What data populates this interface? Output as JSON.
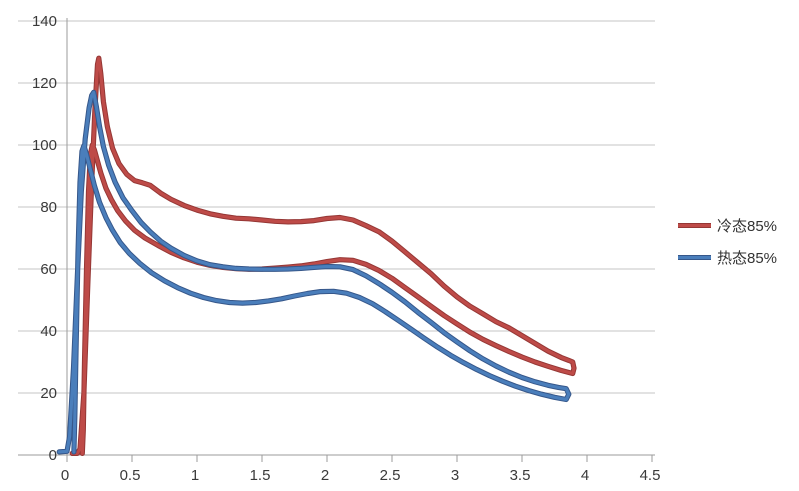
{
  "chart_data": {
    "type": "line",
    "title": "",
    "xlabel": "",
    "ylabel": "",
    "xlim": [
      0,
      4.5
    ],
    "ylim": [
      0,
      140
    ],
    "x_ticks": [
      "0",
      "0.5",
      "1",
      "1.5",
      "2",
      "2.5",
      "3",
      "3.5",
      "4",
      "4.5"
    ],
    "y_ticks": [
      "0",
      "20",
      "40",
      "60",
      "80",
      "100",
      "120",
      "140"
    ],
    "grid": "horizontal-major",
    "legend_position": "right",
    "series": [
      {
        "name": "冷态85%",
        "color": "#BE4B48",
        "border_color": "#953735",
        "points": [
          [
            0.04,
            0.5
          ],
          [
            0.08,
            0.5
          ],
          [
            0.1,
            2
          ],
          [
            0.13,
            20
          ],
          [
            0.16,
            55
          ],
          [
            0.19,
            88
          ],
          [
            0.215,
            112
          ],
          [
            0.235,
            126
          ],
          [
            0.245,
            128
          ],
          [
            0.26,
            123
          ],
          [
            0.28,
            114
          ],
          [
            0.31,
            106
          ],
          [
            0.35,
            99
          ],
          [
            0.4,
            94
          ],
          [
            0.46,
            90.5
          ],
          [
            0.52,
            88.5
          ],
          [
            0.58,
            87.8
          ],
          [
            0.64,
            87
          ],
          [
            0.72,
            84.5
          ],
          [
            0.8,
            82.5
          ],
          [
            0.9,
            80.5
          ],
          [
            1.0,
            79
          ],
          [
            1.1,
            77.8
          ],
          [
            1.2,
            77
          ],
          [
            1.3,
            76.4
          ],
          [
            1.4,
            76.2
          ],
          [
            1.5,
            75.8
          ],
          [
            1.6,
            75.4
          ],
          [
            1.7,
            75.2
          ],
          [
            1.8,
            75.3
          ],
          [
            1.9,
            75.6
          ],
          [
            2.0,
            76.3
          ],
          [
            2.1,
            76.6
          ],
          [
            2.2,
            75.8
          ],
          [
            2.3,
            74
          ],
          [
            2.4,
            72
          ],
          [
            2.5,
            69
          ],
          [
            2.6,
            65.5
          ],
          [
            2.7,
            62
          ],
          [
            2.8,
            58.5
          ],
          [
            2.9,
            54.5
          ],
          [
            3.0,
            51
          ],
          [
            3.1,
            48
          ],
          [
            3.2,
            45.5
          ],
          [
            3.3,
            43
          ],
          [
            3.4,
            41
          ],
          [
            3.5,
            38.5
          ],
          [
            3.6,
            36
          ],
          [
            3.7,
            33.5
          ],
          [
            3.8,
            31.5
          ],
          [
            3.86,
            30.5
          ],
          [
            3.89,
            30
          ],
          [
            3.9,
            28
          ],
          [
            3.89,
            26.3
          ],
          [
            3.8,
            27.3
          ],
          [
            3.7,
            28.6
          ],
          [
            3.6,
            30
          ],
          [
            3.5,
            31.6
          ],
          [
            3.4,
            33.4
          ],
          [
            3.3,
            35.3
          ],
          [
            3.2,
            37.3
          ],
          [
            3.1,
            39.6
          ],
          [
            3.0,
            42.3
          ],
          [
            2.9,
            45
          ],
          [
            2.8,
            48
          ],
          [
            2.7,
            51
          ],
          [
            2.6,
            54
          ],
          [
            2.5,
            57
          ],
          [
            2.4,
            59.5
          ],
          [
            2.3,
            61.5
          ],
          [
            2.2,
            62.8
          ],
          [
            2.1,
            63
          ],
          [
            2.0,
            62.4
          ],
          [
            1.9,
            61.6
          ],
          [
            1.8,
            61
          ],
          [
            1.7,
            60.6
          ],
          [
            1.6,
            60.3
          ],
          [
            1.5,
            60
          ],
          [
            1.4,
            59.9
          ],
          [
            1.3,
            60.1
          ],
          [
            1.2,
            60.5
          ],
          [
            1.1,
            61.2
          ],
          [
            1.0,
            62.2
          ],
          [
            0.9,
            63.6
          ],
          [
            0.8,
            65.4
          ],
          [
            0.7,
            67.6
          ],
          [
            0.6,
            70
          ],
          [
            0.52,
            72.5
          ],
          [
            0.45,
            75.5
          ],
          [
            0.39,
            78.8
          ],
          [
            0.34,
            82.5
          ],
          [
            0.3,
            86
          ],
          [
            0.26,
            91
          ],
          [
            0.23,
            95.5
          ],
          [
            0.21,
            98.5
          ],
          [
            0.195,
            100
          ],
          [
            0.18,
            97
          ],
          [
            0.165,
            85
          ],
          [
            0.15,
            60
          ],
          [
            0.135,
            30
          ],
          [
            0.125,
            8
          ],
          [
            0.118,
            0.5
          ]
        ]
      },
      {
        "name": "热态85%",
        "color": "#4A7EBB",
        "border_color": "#36578A",
        "points": [
          [
            -0.06,
            1
          ],
          [
            0.0,
            1.2
          ],
          [
            0.02,
            6
          ],
          [
            0.05,
            28
          ],
          [
            0.08,
            58
          ],
          [
            0.11,
            85
          ],
          [
            0.14,
            102
          ],
          [
            0.17,
            112
          ],
          [
            0.19,
            116
          ],
          [
            0.205,
            117
          ],
          [
            0.225,
            112.5
          ],
          [
            0.25,
            106
          ],
          [
            0.28,
            99.5
          ],
          [
            0.32,
            93.5
          ],
          [
            0.37,
            88
          ],
          [
            0.43,
            83
          ],
          [
            0.5,
            78.8
          ],
          [
            0.57,
            75
          ],
          [
            0.64,
            72
          ],
          [
            0.72,
            69
          ],
          [
            0.8,
            66.7
          ],
          [
            0.9,
            64.4
          ],
          [
            1.0,
            62.6
          ],
          [
            1.1,
            61.4
          ],
          [
            1.2,
            60.7
          ],
          [
            1.3,
            60.2
          ],
          [
            1.4,
            60
          ],
          [
            1.5,
            59.9
          ],
          [
            1.6,
            59.9
          ],
          [
            1.7,
            60
          ],
          [
            1.8,
            60.2
          ],
          [
            1.9,
            60.5
          ],
          [
            2.0,
            60.8
          ],
          [
            2.1,
            60.7
          ],
          [
            2.2,
            59.8
          ],
          [
            2.3,
            57.8
          ],
          [
            2.4,
            55.3
          ],
          [
            2.5,
            52.5
          ],
          [
            2.6,
            49.4
          ],
          [
            2.7,
            46
          ],
          [
            2.8,
            42.8
          ],
          [
            2.9,
            39.5
          ],
          [
            3.0,
            36.5
          ],
          [
            3.1,
            33.6
          ],
          [
            3.2,
            31
          ],
          [
            3.3,
            28.7
          ],
          [
            3.4,
            26.7
          ],
          [
            3.5,
            25
          ],
          [
            3.6,
            23.6
          ],
          [
            3.7,
            22.5
          ],
          [
            3.78,
            21.8
          ],
          [
            3.84,
            21.4
          ],
          [
            3.86,
            19.6
          ],
          [
            3.84,
            17.9
          ],
          [
            3.75,
            18.6
          ],
          [
            3.65,
            19.6
          ],
          [
            3.55,
            20.8
          ],
          [
            3.45,
            22.2
          ],
          [
            3.35,
            23.8
          ],
          [
            3.25,
            25.6
          ],
          [
            3.15,
            27.6
          ],
          [
            3.05,
            29.8
          ],
          [
            2.95,
            32.2
          ],
          [
            2.85,
            34.8
          ],
          [
            2.75,
            37.6
          ],
          [
            2.65,
            40.5
          ],
          [
            2.55,
            43.4
          ],
          [
            2.45,
            46.2
          ],
          [
            2.35,
            48.8
          ],
          [
            2.25,
            50.8
          ],
          [
            2.15,
            52.2
          ],
          [
            2.05,
            52.8
          ],
          [
            1.95,
            52.7
          ],
          [
            1.85,
            52.1
          ],
          [
            1.75,
            51.3
          ],
          [
            1.65,
            50.4
          ],
          [
            1.55,
            49.7
          ],
          [
            1.45,
            49.2
          ],
          [
            1.35,
            49
          ],
          [
            1.25,
            49.2
          ],
          [
            1.15,
            49.8
          ],
          [
            1.05,
            50.8
          ],
          [
            0.95,
            52.2
          ],
          [
            0.85,
            54
          ],
          [
            0.75,
            56.2
          ],
          [
            0.65,
            58.8
          ],
          [
            0.56,
            61.8
          ],
          [
            0.48,
            65
          ],
          [
            0.41,
            68.5
          ],
          [
            0.35,
            72.5
          ],
          [
            0.3,
            76.5
          ],
          [
            0.25,
            81.5
          ],
          [
            0.21,
            87
          ],
          [
            0.18,
            92
          ],
          [
            0.15,
            97
          ],
          [
            0.13,
            99.8
          ],
          [
            0.115,
            98
          ],
          [
            0.1,
            88
          ],
          [
            0.085,
            65
          ],
          [
            0.07,
            35
          ],
          [
            0.06,
            12
          ],
          [
            0.053,
            1
          ]
        ]
      }
    ]
  },
  "colors": {
    "background": "#FFFFFF",
    "gridline": "#C6C6C6",
    "axis": "#9B9B9B",
    "tick_text": "#3A3A3A"
  }
}
